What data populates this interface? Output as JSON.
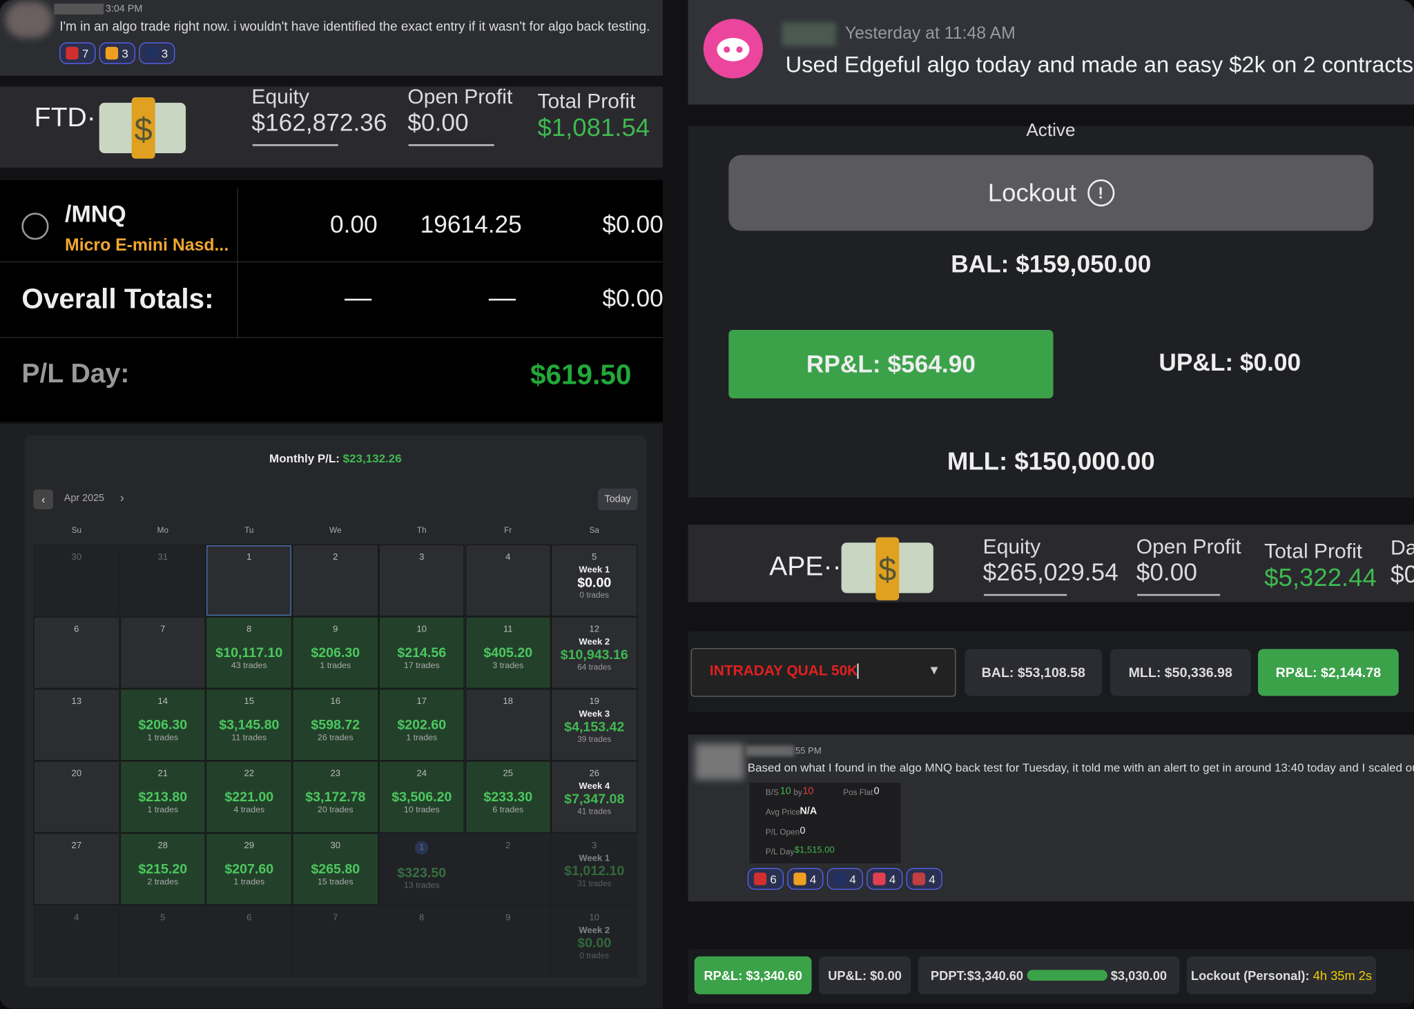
{
  "top_message": {
    "time": "3:04 PM",
    "text": "I'm in an algo trade right now. i wouldn't have identified the exact entry if it wasn't for algo back testing.",
    "reactions": [
      7,
      3,
      3
    ]
  },
  "ftd_account": {
    "name": "FTD·",
    "equity_label": "Equity",
    "equity": "$162,872.36",
    "open_profit_label": "Open Profit",
    "open_profit": "$0.00",
    "total_profit_label": "Total Profit",
    "total_profit": "$1,081.54"
  },
  "positions": {
    "symbol": "/MNQ",
    "description": "Micro E-mini Nasd...",
    "qty": "0.00",
    "price": "19614.25",
    "pl": "$0.00",
    "totals_label": "Overall Totals:",
    "totals_qty": "—",
    "totals_price": "—",
    "totals_pl": "$0.00",
    "pl_day_label": "P/L Day:",
    "pl_day": "$619.50"
  },
  "calendar": {
    "title_label": "Monthly P/L:",
    "title_value": "$23,132.26",
    "month": "Apr 2025",
    "today": "Today",
    "weekdays": [
      "Su",
      "Mo",
      "Tu",
      "We",
      "Th",
      "Fr",
      "Sa"
    ],
    "weeks": [
      {
        "days": [
          {
            "day": "30",
            "faded": true
          },
          {
            "day": "31",
            "faded": true
          },
          {
            "day": "1",
            "selected": true
          },
          {
            "day": "2"
          },
          {
            "day": "3"
          },
          {
            "day": "4"
          }
        ],
        "summary": {
          "day": "5",
          "label": "Week 1",
          "pnl": "$0.00",
          "trades": "0 trades"
        }
      },
      {
        "days": [
          {
            "day": "6"
          },
          {
            "day": "7"
          },
          {
            "day": "8",
            "pnl": "$10,117.10",
            "trades": "43 trades"
          },
          {
            "day": "9",
            "pnl": "$206.30",
            "trades": "1 trades"
          },
          {
            "day": "10",
            "pnl": "$214.56",
            "trades": "17 trades"
          },
          {
            "day": "11",
            "pnl": "$405.20",
            "trades": "3 trades"
          }
        ],
        "summary": {
          "day": "12",
          "label": "Week 2",
          "pnl": "$10,943.16",
          "trades": "64 trades"
        }
      },
      {
        "days": [
          {
            "day": "13"
          },
          {
            "day": "14",
            "pnl": "$206.30",
            "trades": "1 trades"
          },
          {
            "day": "15",
            "pnl": "$3,145.80",
            "trades": "11 trades"
          },
          {
            "day": "16",
            "pnl": "$598.72",
            "trades": "26 trades"
          },
          {
            "day": "17",
            "pnl": "$202.60",
            "trades": "1 trades"
          },
          {
            "day": "18"
          }
        ],
        "summary": {
          "day": "19",
          "label": "Week 3",
          "pnl": "$4,153.42",
          "trades": "39 trades"
        }
      },
      {
        "days": [
          {
            "day": "20"
          },
          {
            "day": "21",
            "pnl": "$213.80",
            "trades": "1 trades"
          },
          {
            "day": "22",
            "pnl": "$221.00",
            "trades": "4 trades"
          },
          {
            "day": "23",
            "pnl": "$3,172.78",
            "trades": "20 trades"
          },
          {
            "day": "24",
            "pnl": "$3,506.20",
            "trades": "10 trades"
          },
          {
            "day": "25",
            "pnl": "$233.30",
            "trades": "6 trades"
          }
        ],
        "summary": {
          "day": "26",
          "label": "Week 4",
          "pnl": "$7,347.08",
          "trades": "41 trades"
        }
      },
      {
        "days": [
          {
            "day": "27"
          },
          {
            "day": "28",
            "pnl": "$215.20",
            "trades": "2 trades"
          },
          {
            "day": "29",
            "pnl": "$207.60",
            "trades": "1 trades"
          },
          {
            "day": "30",
            "pnl": "$265.80",
            "trades": "15 trades"
          },
          {
            "day": "1",
            "faded": true,
            "today": true,
            "pnl": "$323.50",
            "trades": "13 trades"
          },
          {
            "day": "2",
            "faded": true
          }
        ],
        "summary": {
          "day": "3",
          "faded": true,
          "label": "Week 1",
          "pnl": "$1,012.10",
          "trades": "31 trades"
        }
      },
      {
        "days": [
          {
            "day": "4",
            "faded": true
          },
          {
            "day": "5",
            "faded": true
          },
          {
            "day": "6",
            "faded": true
          },
          {
            "day": "7",
            "faded": true
          },
          {
            "day": "8",
            "faded": true
          },
          {
            "day": "9",
            "faded": true
          }
        ],
        "summary": {
          "day": "10",
          "faded": true,
          "label": "Week 2",
          "pnl": "$0.00",
          "trades": "0 trades"
        }
      }
    ]
  },
  "discord_message": {
    "timestamp": "Yesterday at 11:48 AM",
    "text": "Used Edgeful algo today and made an easy $2k on 2 contracts"
  },
  "risk_panel": {
    "status": "Active",
    "lockout": "Lockout",
    "bal": "BAL: $159,050.00",
    "rpl": "RP&L: $564.90",
    "upl": "UP&L: $0.00",
    "mll": "MLL: $150,000.00"
  },
  "ape_account": {
    "name": "APE··",
    "equity_label": "Equity",
    "equity": "$265,029.54",
    "open_profit_label": "Open Profit",
    "open_profit": "$0.00",
    "total_profit_label": "Total Profit",
    "total_profit": "$5,322.44",
    "cut_label": "Da",
    "cut_value": "$0"
  },
  "toolbar": {
    "account": "INTRADAY QUAL 50K",
    "bal": "BAL: $53,108.58",
    "mll": "MLL: $50,336.98",
    "rpl": "RP&L: $2,144.78"
  },
  "second_message": {
    "time": "55 PM",
    "text": "Based on what I found in the algo MNQ back test for Tuesday, it told me with an alert to get in around 13:40 today and I scaled out.",
    "widget": {
      "bs_label": "B/S",
      "buys": "10",
      "by": "by",
      "sells": "10",
      "pos_label": "Pos Flat",
      "pos": "0",
      "avg_label": "Avg Price",
      "avg": "N/A",
      "open_label": "P/L Open",
      "open": "0",
      "day_label": "P/L Day",
      "day": "$1,515.00"
    },
    "reactions": [
      6,
      4,
      4,
      4,
      4
    ]
  },
  "bottom_bar": {
    "rpl": "RP&L: $3,340.60",
    "upl": "UP&L: $0.00",
    "pdpt": "PDPT:$3,340.60",
    "target": "$3,030.00",
    "lockout_label": "Lockout (Personal):",
    "lockout_time": "4h 35m 2s"
  }
}
